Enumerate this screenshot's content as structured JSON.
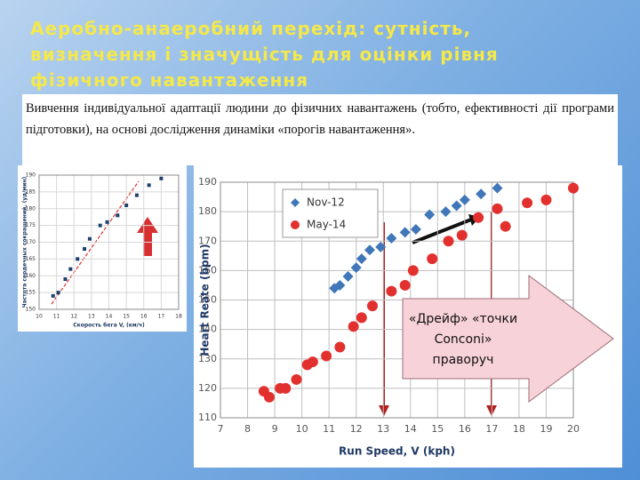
{
  "title": [
    "Аеробно-анаеробний перехід: сутність,",
    "визначення і значущість для оцінки рівня",
    "фізичного навантаження"
  ],
  "text": "Вивчення індивідуальної адаптації людини до фізичних навантажень (тобто, ефективності дії програми підготовки), на основі дослідження динаміки «порогів навантаження».",
  "chart_data": [
    {
      "type": "scatter",
      "x_label": "Скорость бега V, (км/ч)",
      "y_label": "Частота сердечных сокращений, (уд/мин)",
      "xlim": [
        10,
        18
      ],
      "xticks": [
        10,
        11,
        12,
        13,
        14,
        15,
        16,
        17,
        18
      ],
      "ylim": [
        150,
        190
      ],
      "yticks": [
        150,
        155,
        160,
        165,
        170,
        175,
        180,
        185,
        190
      ],
      "grid": true,
      "series": [
        {
          "color": "#1f3f6e",
          "marker": "square",
          "x": [
            10.8,
            11.1,
            11.5,
            11.8,
            12.2,
            12.6,
            12.9,
            13.5,
            13.9,
            14.5,
            15,
            15.6,
            16.3,
            17
          ],
          "values": [
            154,
            155,
            159,
            162,
            165,
            168,
            171,
            175,
            176,
            178,
            181,
            184,
            187,
            189
          ]
        }
      ]
    },
    {
      "type": "scatter",
      "x_label": "Run Speed, V (kph)",
      "y_label": "Heart Reate (bpm)",
      "xlim": [
        7,
        20
      ],
      "xticks": [
        7,
        8,
        9,
        10,
        11,
        12,
        13,
        14,
        15,
        16,
        17,
        18,
        19,
        20
      ],
      "ylim": [
        110,
        190
      ],
      "yticks": [
        110,
        120,
        130,
        140,
        150,
        160,
        170,
        180,
        190
      ],
      "grid": true,
      "legend": "top-left",
      "series": [
        {
          "name": "Nov-12",
          "color": "#3f77b8",
          "marker": "diamond",
          "x": [
            11.2,
            11.4,
            11.7,
            12,
            12.2,
            12.5,
            12.9,
            13.3,
            13.8,
            14.2,
            14.7,
            15.3,
            15.7,
            16,
            16.6,
            17.2
          ],
          "values": [
            154,
            155,
            158,
            161,
            164,
            167,
            168,
            171,
            173,
            174,
            179,
            180,
            182,
            184,
            186,
            188
          ]
        },
        {
          "name": "May-14",
          "color": "#e2302f",
          "marker": "circle",
          "x": [
            8.6,
            8.8,
            9.2,
            9.4,
            9.8,
            10.2,
            10.4,
            10.9,
            11.4,
            11.9,
            12.2,
            12.6,
            13.3,
            13.8,
            14.1,
            14.8,
            15.4,
            15.9,
            16.5,
            17.2,
            17.5,
            18.3,
            19,
            20
          ],
          "values": [
            119,
            117,
            120,
            120,
            123,
            128,
            129,
            131,
            134,
            141,
            144,
            148,
            153,
            155,
            160,
            164,
            170,
            172,
            178,
            181,
            175,
            183,
            184,
            188
          ]
        }
      ],
      "annotation": [
        "«Дрейф» «точки",
        "Conconi»",
        "праворуч"
      ]
    }
  ]
}
